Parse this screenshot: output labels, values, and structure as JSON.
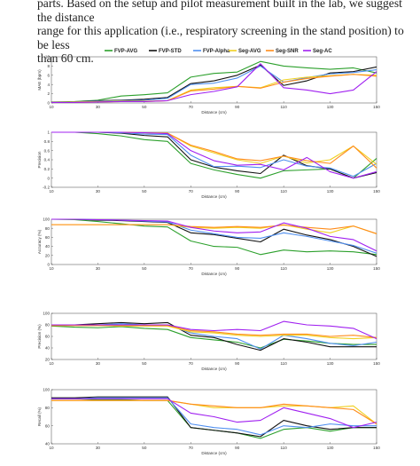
{
  "text": {
    "line1": "parts. Based on the setup and pilot measurement built in the lab, we suggest the distance",
    "line2": "range for this application (i.e., respiratory screening in the stand position) to be less",
    "line3": "than 60 cm."
  },
  "legend": [
    {
      "name": "FVP-AVG",
      "color": "#2ca02c"
    },
    {
      "name": "FVP-STD",
      "color": "#111111"
    },
    {
      "name": "FVP-Alpha",
      "color": "#4f8ff0"
    },
    {
      "name": "Seg-AVG",
      "color": "#f0d020"
    },
    {
      "name": "Seg-SNR",
      "color": "#ff8c1a"
    },
    {
      "name": "Seg-AC",
      "color": "#a020f0"
    }
  ],
  "chart_data": [
    {
      "type": "line",
      "xlabel": "Distance (cm)",
      "ylabel": "MAE (bpm)",
      "xlim": [
        10,
        150
      ],
      "ylim": [
        0,
        10
      ],
      "x_ticks": [
        "10",
        "30",
        "50",
        "70",
        "90",
        "110",
        "130",
        "150"
      ],
      "y_ticks": [
        "0",
        "2",
        "4",
        "6",
        "8",
        "10"
      ],
      "x": [
        10,
        20,
        30,
        40,
        50,
        60,
        70,
        80,
        90,
        100,
        110,
        120,
        130,
        140,
        150
      ],
      "series": [
        {
          "name": "FVP-AVG",
          "color": "#2ca02c",
          "values": [
            0.2,
            0.3,
            0.6,
            1.5,
            1.8,
            2.2,
            5.6,
            6.4,
            6.7,
            9.0,
            8.0,
            7.6,
            7.3,
            7.6,
            6.5
          ]
        },
        {
          "name": "FVP-STD",
          "color": "#111111",
          "values": [
            0.1,
            0.2,
            0.5,
            0.6,
            0.8,
            1.2,
            4.2,
            4.8,
            6.0,
            8.2,
            3.8,
            4.8,
            6.5,
            6.8,
            7.8
          ]
        },
        {
          "name": "FVP-Alpha",
          "color": "#4f8ff0",
          "values": [
            0.1,
            0.2,
            0.4,
            0.5,
            0.6,
            1.0,
            4.0,
            4.3,
            5.4,
            8.0,
            4.5,
            5.5,
            6.3,
            6.6,
            7.2
          ]
        },
        {
          "name": "Seg-AVG",
          "color": "#f0d020",
          "values": [
            0.1,
            0.2,
            0.3,
            0.4,
            0.4,
            0.5,
            2.8,
            3.3,
            3.6,
            3.3,
            5.0,
            5.6,
            5.9,
            6.2,
            6.0
          ]
        },
        {
          "name": "Seg-SNR",
          "color": "#ff8c1a",
          "values": [
            0.1,
            0.1,
            0.2,
            0.3,
            0.3,
            0.5,
            2.6,
            3.0,
            3.6,
            3.2,
            4.5,
            5.3,
            5.8,
            6.2,
            5.8
          ]
        },
        {
          "name": "Seg-AC",
          "color": "#a020f0",
          "values": [
            0.1,
            0.1,
            0.2,
            0.3,
            0.3,
            0.5,
            1.8,
            2.5,
            3.5,
            8.5,
            3.3,
            2.8,
            2.0,
            2.8,
            6.8
          ]
        }
      ]
    },
    {
      "type": "line",
      "xlabel": "Distance (cm)",
      "ylabel": "Precision",
      "xlim": [
        10,
        150
      ],
      "ylim": [
        -0.2,
        1.0
      ],
      "x_ticks": [
        "10",
        "30",
        "50",
        "70",
        "90",
        "110",
        "130",
        "150"
      ],
      "y_ticks": [
        "-0.2",
        "0",
        "0.2",
        "0.4",
        "0.6",
        "0.8",
        "1"
      ],
      "x": [
        10,
        20,
        30,
        40,
        50,
        60,
        70,
        80,
        90,
        100,
        110,
        120,
        130,
        140,
        150
      ],
      "series": [
        {
          "name": "FVP-AVG",
          "color": "#2ca02c",
          "values": [
            1.0,
            1.0,
            0.97,
            0.92,
            0.84,
            0.8,
            0.32,
            0.18,
            0.08,
            0.0,
            0.16,
            0.18,
            0.2,
            0.0,
            0.43
          ]
        },
        {
          "name": "FVP-STD",
          "color": "#111111",
          "values": [
            1.0,
            1.0,
            1.0,
            0.98,
            0.93,
            0.9,
            0.4,
            0.24,
            0.16,
            0.1,
            0.5,
            0.27,
            0.2,
            0.0,
            0.12
          ]
        },
        {
          "name": "FVP-Alpha",
          "color": "#4f8ff0",
          "values": [
            1.0,
            1.0,
            1.0,
            0.99,
            0.96,
            0.95,
            0.5,
            0.25,
            0.26,
            0.23,
            0.4,
            0.26,
            0.22,
            0.04,
            0.32
          ]
        },
        {
          "name": "Seg-AVG",
          "color": "#f0d020",
          "values": [
            1.0,
            1.0,
            1.0,
            1.0,
            0.99,
            0.98,
            0.7,
            0.55,
            0.4,
            0.32,
            0.48,
            0.33,
            0.4,
            0.7,
            0.3
          ]
        },
        {
          "name": "Seg-SNR",
          "color": "#ff8c1a",
          "values": [
            1.0,
            1.0,
            1.0,
            1.0,
            0.99,
            0.98,
            0.72,
            0.58,
            0.42,
            0.38,
            0.48,
            0.38,
            0.32,
            0.7,
            0.22
          ]
        },
        {
          "name": "Seg-AC",
          "color": "#a020f0",
          "values": [
            1.0,
            1.0,
            1.0,
            1.0,
            0.99,
            0.97,
            0.6,
            0.38,
            0.28,
            0.3,
            0.18,
            0.45,
            0.14,
            0.0,
            0.14
          ]
        }
      ]
    },
    {
      "type": "line",
      "xlabel": "Distance (cm)",
      "ylabel": "Accuracy (%)",
      "xlim": [
        10,
        150
      ],
      "ylim": [
        0,
        100
      ],
      "x_ticks": [
        "10",
        "30",
        "50",
        "70",
        "90",
        "110",
        "130",
        "150"
      ],
      "y_ticks": [
        "0",
        "20",
        "40",
        "60",
        "80",
        "100"
      ],
      "x": [
        10,
        20,
        30,
        40,
        50,
        60,
        70,
        80,
        90,
        100,
        110,
        120,
        130,
        140,
        150
      ],
      "series": [
        {
          "name": "FVP-AVG",
          "color": "#2ca02c",
          "values": [
            100,
            99,
            95,
            90,
            85,
            83,
            52,
            40,
            38,
            22,
            32,
            28,
            30,
            28,
            22
          ]
        },
        {
          "name": "FVP-STD",
          "color": "#111111",
          "values": [
            100,
            100,
            98,
            97,
            95,
            93,
            70,
            66,
            58,
            50,
            78,
            65,
            55,
            40,
            18
          ]
        },
        {
          "name": "FVP-Alpha",
          "color": "#4f8ff0",
          "values": [
            100,
            100,
            99,
            98,
            96,
            94,
            76,
            68,
            60,
            58,
            70,
            62,
            52,
            42,
            25
          ]
        },
        {
          "name": "Seg-AVG",
          "color": "#f0d020",
          "values": [
            88,
            88,
            88,
            88,
            88,
            88,
            82,
            80,
            82,
            80,
            88,
            78,
            70,
            85,
            68
          ]
        },
        {
          "name": "Seg-SNR",
          "color": "#ff8c1a",
          "values": [
            88,
            88,
            88,
            88,
            88,
            88,
            84,
            82,
            84,
            82,
            87,
            82,
            78,
            85,
            68
          ]
        },
        {
          "name": "Seg-AC",
          "color": "#a020f0",
          "values": [
            100,
            100,
            99,
            98,
            97,
            96,
            82,
            74,
            70,
            72,
            92,
            80,
            62,
            55,
            30
          ]
        }
      ]
    },
    {
      "type": "line",
      "xlabel": "Distance (cm)",
      "ylabel": "Precision (%)",
      "xlim": [
        10,
        150
      ],
      "ylim": [
        20,
        100
      ],
      "x_ticks": [
        "10",
        "30",
        "50",
        "70",
        "90",
        "110",
        "130",
        "150"
      ],
      "y_ticks": [
        "20",
        "40",
        "60",
        "80",
        "100"
      ],
      "x": [
        10,
        20,
        30,
        40,
        50,
        60,
        70,
        80,
        90,
        100,
        110,
        120,
        130,
        140,
        150
      ],
      "series": [
        {
          "name": "FVP-AVG",
          "color": "#2ca02c",
          "values": [
            78,
            76,
            75,
            77,
            74,
            72,
            58,
            54,
            50,
            40,
            55,
            52,
            48,
            46,
            46
          ]
        },
        {
          "name": "FVP-STD",
          "color": "#111111",
          "values": [
            80,
            80,
            82,
            84,
            82,
            84,
            62,
            58,
            46,
            36,
            56,
            50,
            42,
            42,
            42
          ]
        },
        {
          "name": "FVP-Alpha",
          "color": "#4f8ff0",
          "values": [
            80,
            80,
            80,
            82,
            80,
            80,
            66,
            60,
            56,
            38,
            62,
            56,
            48,
            44,
            50
          ]
        },
        {
          "name": "Seg-AVG",
          "color": "#f0d020",
          "values": [
            79,
            79,
            79,
            78,
            78,
            78,
            68,
            66,
            62,
            60,
            62,
            62,
            58,
            56,
            58
          ]
        },
        {
          "name": "Seg-SNR",
          "color": "#ff8c1a",
          "values": [
            79,
            79,
            79,
            79,
            79,
            79,
            70,
            68,
            64,
            62,
            64,
            64,
            60,
            62,
            58
          ]
        },
        {
          "name": "Seg-AC",
          "color": "#a020f0",
          "values": [
            80,
            80,
            80,
            80,
            80,
            80,
            72,
            70,
            72,
            70,
            86,
            80,
            78,
            74,
            56
          ]
        }
      ]
    },
    {
      "type": "line",
      "xlabel": "Distance (cm)",
      "ylabel": "Recall (%)",
      "xlim": [
        10,
        150
      ],
      "ylim": [
        40,
        100
      ],
      "x_ticks": [
        "10",
        "30",
        "50",
        "70",
        "90",
        "110",
        "130",
        "150"
      ],
      "y_ticks": [
        "40",
        "60",
        "80",
        "100"
      ],
      "x": [
        10,
        20,
        30,
        40,
        50,
        60,
        70,
        80,
        90,
        100,
        110,
        120,
        130,
        140,
        150
      ],
      "series": [
        {
          "name": "FVP-AVG",
          "color": "#2ca02c",
          "values": [
            90,
            90,
            89,
            89,
            88,
            88,
            58,
            55,
            52,
            46,
            56,
            58,
            54,
            58,
            58
          ]
        },
        {
          "name": "FVP-STD",
          "color": "#111111",
          "values": [
            91,
            91,
            92,
            92,
            92,
            92,
            58,
            55,
            52,
            48,
            66,
            60,
            56,
            58,
            58
          ]
        },
        {
          "name": "FVP-Alpha",
          "color": "#4f8ff0",
          "values": [
            90,
            90,
            91,
            91,
            91,
            91,
            62,
            58,
            56,
            50,
            60,
            58,
            62,
            60,
            60
          ]
        },
        {
          "name": "Seg-AVG",
          "color": "#f0d020",
          "values": [
            88,
            88,
            88,
            88,
            88,
            88,
            84,
            80,
            80,
            80,
            82,
            82,
            80,
            82,
            62
          ]
        },
        {
          "name": "Seg-SNR",
          "color": "#ff8c1a",
          "values": [
            88,
            88,
            88,
            88,
            88,
            88,
            84,
            82,
            80,
            80,
            84,
            82,
            80,
            78,
            62
          ]
        },
        {
          "name": "Seg-AC",
          "color": "#a020f0",
          "values": [
            90,
            90,
            90,
            90,
            90,
            90,
            74,
            70,
            64,
            66,
            80,
            74,
            68,
            58,
            64
          ]
        }
      ]
    }
  ]
}
